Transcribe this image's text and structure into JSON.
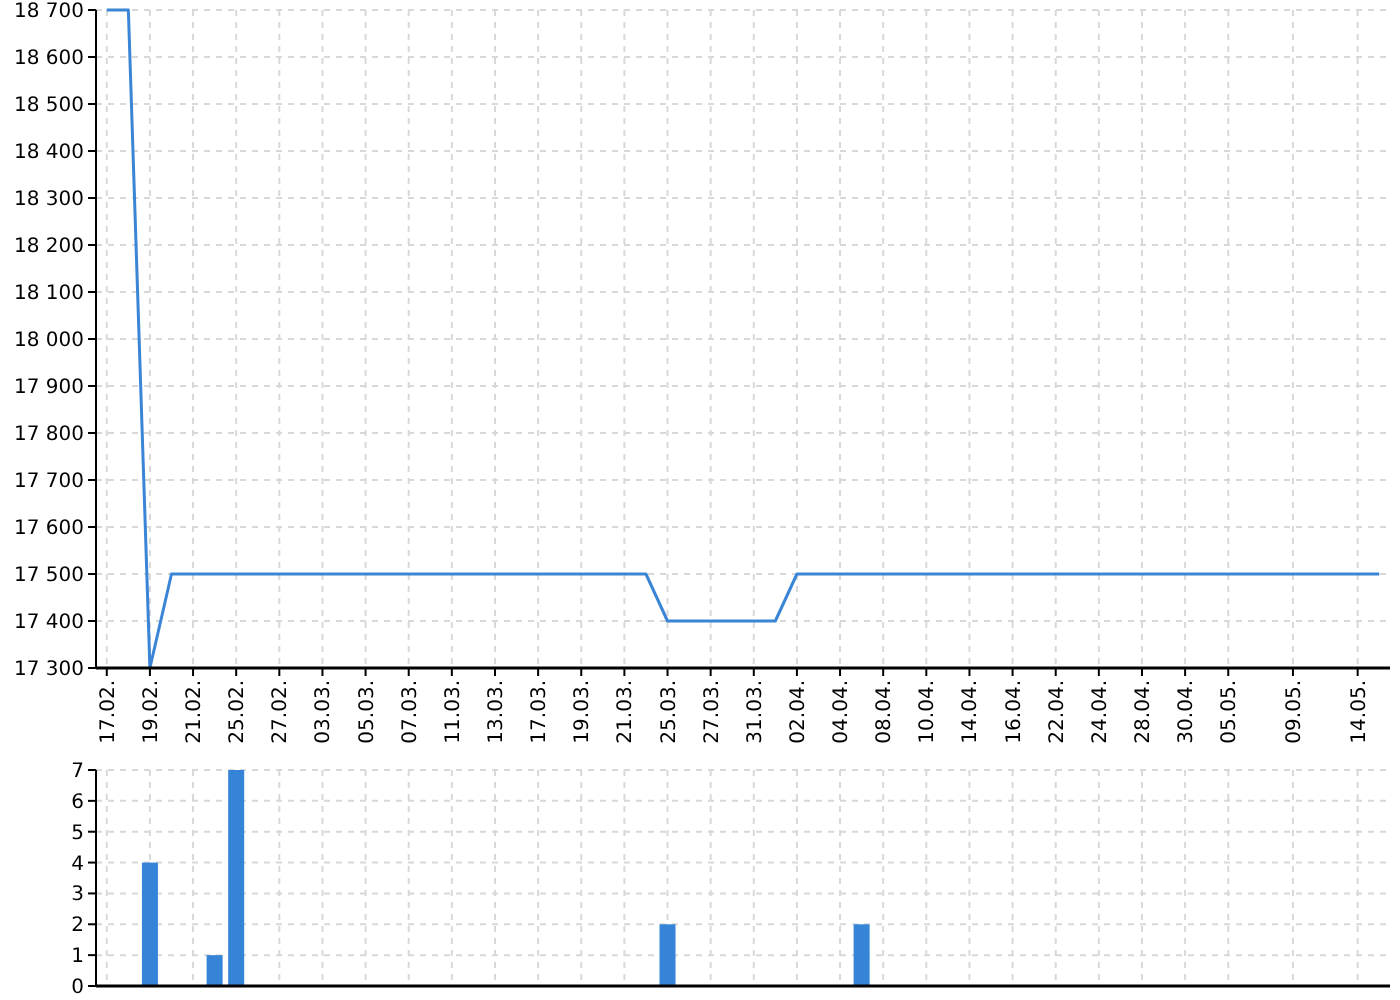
{
  "chart_data": [
    {
      "type": "line",
      "categories": [
        "17.02.",
        null,
        "19.02.",
        null,
        "21.02.",
        null,
        "25.02.",
        null,
        "27.02.",
        null,
        "03.03.",
        null,
        "05.03.",
        null,
        "07.03.",
        null,
        "11.03.",
        null,
        "13.03.",
        null,
        "17.03.",
        null,
        "19.03.",
        null,
        "21.03.",
        null,
        "25.03.",
        null,
        "27.03.",
        null,
        "31.03.",
        null,
        "02.04.",
        null,
        "04.04.",
        null,
        "08.04.",
        null,
        "10.04.",
        null,
        "14.04.",
        null,
        "16.04.",
        null,
        "22.04.",
        null,
        "24.04.",
        null,
        "28.04.",
        null,
        "30.04.",
        null,
        "05.05.",
        null,
        null,
        "09.05.",
        null,
        null,
        "14.05.",
        null
      ],
      "series": [
        {
          "color": "#3a85d6",
          "values": [
            18700,
            18700,
            17300,
            17500,
            17500,
            17500,
            17500,
            17500,
            17500,
            17500,
            17500,
            17500,
            17500,
            17500,
            17500,
            17500,
            17500,
            17500,
            17500,
            17500,
            17500,
            17500,
            17500,
            17500,
            17500,
            17500,
            17400,
            17400,
            17400,
            17400,
            17400,
            17400,
            17500,
            17500,
            17500,
            17500,
            17500,
            17500,
            17500,
            17500,
            17500,
            17500,
            17500,
            17500,
            17500,
            17500,
            17500,
            17500,
            17500,
            17500,
            17500,
            17500,
            17500,
            17500,
            17500,
            17500,
            17500,
            17500,
            17500,
            17500
          ]
        }
      ],
      "ylim": [
        17300,
        18700
      ],
      "yticks": [
        {
          "value": 17300,
          "label": "17 300"
        },
        {
          "value": 17400,
          "label": "17 400"
        },
        {
          "value": 17500,
          "label": "17 500"
        },
        {
          "value": 17600,
          "label": "17 600"
        },
        {
          "value": 17700,
          "label": "17 700"
        },
        {
          "value": 17800,
          "label": "17 800"
        },
        {
          "value": 17900,
          "label": "17 900"
        },
        {
          "value": 18000,
          "label": "18 000"
        },
        {
          "value": 18100,
          "label": "18 100"
        },
        {
          "value": 18200,
          "label": "18 200"
        },
        {
          "value": 18300,
          "label": "18 300"
        },
        {
          "value": 18400,
          "label": "18 400"
        },
        {
          "value": 18500,
          "label": "18 500"
        },
        {
          "value": 18600,
          "label": "18 600"
        },
        {
          "value": 18700,
          "label": "18 700"
        }
      ],
      "grid": true
    },
    {
      "type": "bar",
      "categories": [
        "17.02.",
        null,
        "19.02.",
        null,
        "21.02.",
        null,
        "25.02.",
        null,
        "27.02.",
        null,
        "03.03.",
        null,
        "05.03.",
        null,
        "07.03.",
        null,
        "11.03.",
        null,
        "13.03.",
        null,
        "17.03.",
        null,
        "19.03.",
        null,
        "21.03.",
        null,
        "25.03.",
        null,
        "27.03.",
        null,
        "31.03.",
        null,
        "02.04.",
        null,
        "04.04.",
        null,
        "08.04.",
        null,
        "10.04.",
        null,
        "14.04.",
        null,
        "16.04.",
        null,
        "22.04.",
        null,
        "24.04.",
        null,
        "28.04.",
        null,
        "30.04.",
        null,
        "05.05.",
        null,
        null,
        "09.05.",
        null,
        null,
        "14.05.",
        null
      ],
      "series": [
        {
          "color": "#3584d8",
          "values": [
            null,
            null,
            4,
            null,
            null,
            1,
            7,
            null,
            null,
            null,
            null,
            null,
            null,
            null,
            null,
            null,
            null,
            null,
            null,
            null,
            null,
            null,
            null,
            null,
            null,
            null,
            2,
            null,
            null,
            null,
            null,
            null,
            null,
            null,
            null,
            2,
            null,
            null,
            null,
            null,
            null,
            null,
            null,
            null,
            null,
            null,
            null,
            null,
            null,
            null,
            null,
            null,
            null,
            null,
            null,
            null,
            null,
            null,
            null,
            null
          ]
        }
      ],
      "ylim": [
        0,
        7
      ],
      "yticks": [
        0,
        1,
        2,
        3,
        4,
        5,
        6,
        7
      ],
      "grid": true,
      "tick_labels": "y"
    }
  ]
}
